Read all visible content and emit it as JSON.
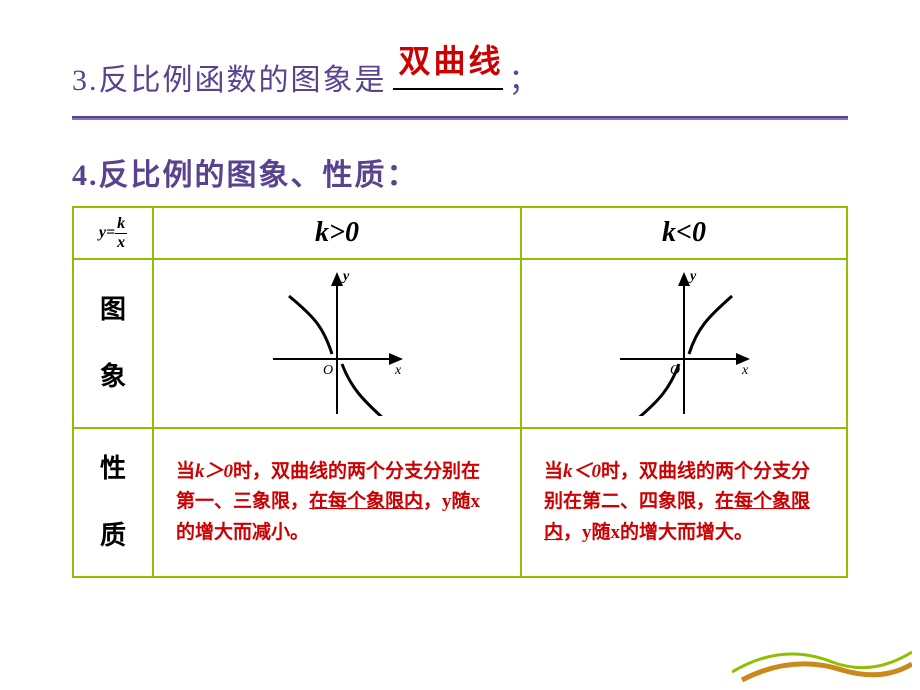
{
  "colors": {
    "purple": "#59438e",
    "purple2": "#8870c0",
    "red": "#cc0000",
    "green": "#8fbf00",
    "black": "#000000",
    "orange": "#c88a1a"
  },
  "line3": {
    "prefix": "3.反比例函数的图象是",
    "fill": "双曲线",
    "suffix": "；"
  },
  "line4": "4.反比例的图象、性质：",
  "formula": {
    "lhs": "y=",
    "num": "k",
    "den": "x"
  },
  "col_header": {
    "k_pos": "k>0",
    "k_neg": "k<0"
  },
  "row_labels": {
    "graph_top": "图",
    "graph_bot": "象",
    "prop_top": "性",
    "prop_bot": "质"
  },
  "graph": {
    "axis_x": "x",
    "axis_y": "y",
    "origin": "O",
    "pos_paths": [
      "M22 30 C 46 50, 56 60, 65 88",
      "M75 98 C 84 122, 96 134, 118 154"
    ],
    "neg_paths": [
      "M22 154 C 46 134, 56 122, 65 98",
      "M75 88 C 84 60, 96 50, 118 30"
    ]
  },
  "properties": {
    "k_pos": {
      "pre": "当",
      "cond": "k＞0",
      "post": "时，双曲线的两个分支分别在第一、三象限，",
      "u": "在每个象限内",
      "tail1": "，y随x的增大而",
      "tail2": "减小。"
    },
    "k_neg": {
      "pre": "当",
      "cond": "k＜0",
      "post": "时，双曲线的两个分支分别在第二、四象限，",
      "u": "在每个象限内",
      "tail1": "，y随x的增大而",
      "tail2": "增大。"
    }
  }
}
